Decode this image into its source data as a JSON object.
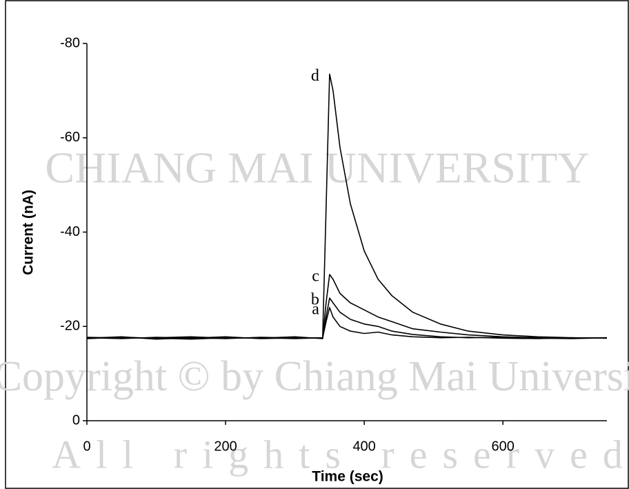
{
  "chart_data": {
    "type": "line",
    "x_label": "Time (sec)",
    "y_label": "Current (nA)",
    "x": [
      0,
      50,
      100,
      150,
      200,
      250,
      300,
      340,
      345,
      350,
      355,
      365,
      380,
      400,
      420,
      440,
      470,
      510,
      550,
      600,
      650,
      700,
      750
    ],
    "series": [
      {
        "name": "a",
        "color": "#000000",
        "values": [
          -17.5,
          -17.8,
          -17.3,
          -17.6,
          -17.4,
          -17.7,
          -17.5,
          -17.6,
          -21,
          -24,
          -22,
          -20,
          -19,
          -18.5,
          -18.8,
          -18.2,
          -17.8,
          -17.6,
          -17.7,
          -17.5,
          -17.4,
          -17.6,
          -17.5
        ]
      },
      {
        "name": "b",
        "color": "#000000",
        "values": [
          -17.6,
          -17.4,
          -17.7,
          -17.5,
          -17.8,
          -17.4,
          -17.6,
          -17.5,
          -22,
          -26,
          -25,
          -23,
          -21.5,
          -20.5,
          -20,
          -19,
          -18.3,
          -17.8,
          -17.6,
          -17.7,
          -17.5,
          -17.4,
          -17.6
        ]
      },
      {
        "name": "c",
        "color": "#000000",
        "values": [
          -17.4,
          -17.7,
          -17.5,
          -17.3,
          -17.6,
          -17.5,
          -17.8,
          -17.4,
          -25,
          -31,
          -30,
          -27,
          -25,
          -23.5,
          -22,
          -21,
          -19.5,
          -18.8,
          -18.2,
          -17.8,
          -17.6,
          -17.5,
          -17.6
        ]
      },
      {
        "name": "d",
        "color": "#000000",
        "values": [
          -17.7,
          -17.5,
          -17.6,
          -17.8,
          -17.5,
          -17.6,
          -17.4,
          -17.6,
          -45,
          -73.5,
          -70,
          -58,
          -46,
          -36,
          -30,
          -26.5,
          -23,
          -20.5,
          -19,
          -18.2,
          -17.8,
          -17.6,
          -17.5
        ]
      }
    ],
    "xlim": [
      0,
      750
    ],
    "xticks": [
      0,
      200,
      400,
      600
    ],
    "ylim": [
      0,
      -80
    ],
    "yticks": [
      0,
      -20,
      -40,
      -60,
      -80
    ],
    "grid": false,
    "watermark": [
      "CHIANG MAI UNIVERSITY",
      "Copyright © by Chiang Mai University",
      "All rights reserved"
    ]
  }
}
